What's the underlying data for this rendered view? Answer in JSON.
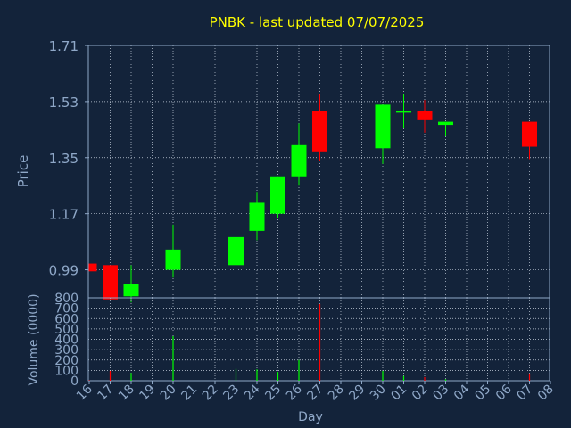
{
  "colors": {
    "background": "#13233a",
    "frame": "#8fa8c8",
    "grid": "#c9d3e0",
    "title": "#ffff00",
    "axis_text": "#8fa8c8",
    "up": "#00ff00",
    "down": "#ff0000"
  },
  "chart_data": [
    {
      "type": "candlestick",
      "title": "PNBK - last updated 07/07/2025",
      "xlabel": "",
      "ylabel": "Price",
      "ylim": [
        0.9,
        1.71
      ],
      "grid": true,
      "y_ticks": [
        "1.71",
        "1.53",
        "1.35",
        "1.17",
        "0.99"
      ],
      "x_ticks": [
        "16",
        "17",
        "18",
        "19",
        "20",
        "21",
        "22",
        "23",
        "24",
        "25",
        "26",
        "27",
        "28",
        "29",
        "30",
        "01",
        "02",
        "03",
        "04",
        "05",
        "06",
        "07",
        "08"
      ],
      "candles": [
        {
          "day": "16",
          "open": 1.01,
          "close": 0.985,
          "high": 1.01,
          "low": 0.985
        },
        {
          "day": "17",
          "open": 1.005,
          "close": 0.895,
          "high": 1.005,
          "low": 0.895
        },
        {
          "day": "18",
          "open": 0.905,
          "close": 0.945,
          "high": 1.005,
          "low": 0.885
        },
        {
          "day": "20",
          "open": 0.99,
          "close": 1.055,
          "high": 1.135,
          "low": 0.965
        },
        {
          "day": "23",
          "open": 1.005,
          "close": 1.095,
          "high": 1.095,
          "low": 0.935
        },
        {
          "day": "24",
          "open": 1.115,
          "close": 1.205,
          "high": 1.24,
          "low": 1.085
        },
        {
          "day": "25",
          "open": 1.17,
          "close": 1.29,
          "high": 1.29,
          "low": 1.155
        },
        {
          "day": "26",
          "open": 1.29,
          "close": 1.39,
          "high": 1.46,
          "low": 1.26
        },
        {
          "day": "27",
          "open": 1.5,
          "close": 1.37,
          "high": 1.555,
          "low": 1.34
        },
        {
          "day": "30",
          "open": 1.38,
          "close": 1.52,
          "high": 1.52,
          "low": 1.33
        },
        {
          "day": "01",
          "open": 1.495,
          "close": 1.5,
          "high": 1.555,
          "low": 1.445
        },
        {
          "day": "02",
          "open": 1.5,
          "close": 1.47,
          "high": 1.535,
          "low": 1.43
        },
        {
          "day": "03",
          "open": 1.455,
          "close": 1.465,
          "high": 1.465,
          "low": 1.42
        },
        {
          "day": "07",
          "open": 1.465,
          "close": 1.385,
          "high": 1.465,
          "low": 1.345
        }
      ]
    },
    {
      "type": "bar",
      "title": "",
      "xlabel": "Day",
      "ylabel": "Volume (0000)",
      "ylim": [
        0,
        800
      ],
      "grid": true,
      "y_ticks": [
        "800",
        "700",
        "600",
        "500",
        "400",
        "300",
        "200",
        "100",
        "0"
      ],
      "x_ticks": [
        "16",
        "17",
        "18",
        "19",
        "20",
        "21",
        "22",
        "23",
        "24",
        "25",
        "26",
        "27",
        "28",
        "29",
        "30",
        "01",
        "02",
        "03",
        "04",
        "05",
        "06",
        "07",
        "08"
      ],
      "bars": [
        {
          "day": "16",
          "value": 5,
          "direction": "down"
        },
        {
          "day": "17",
          "value": 95,
          "direction": "down"
        },
        {
          "day": "18",
          "value": 75,
          "direction": "up"
        },
        {
          "day": "20",
          "value": 430,
          "direction": "up"
        },
        {
          "day": "23",
          "value": 115,
          "direction": "up"
        },
        {
          "day": "24",
          "value": 110,
          "direction": "up"
        },
        {
          "day": "25",
          "value": 85,
          "direction": "up"
        },
        {
          "day": "26",
          "value": 200,
          "direction": "up"
        },
        {
          "day": "27",
          "value": 740,
          "direction": "down"
        },
        {
          "day": "30",
          "value": 95,
          "direction": "up"
        },
        {
          "day": "01",
          "value": 45,
          "direction": "up"
        },
        {
          "day": "02",
          "value": 35,
          "direction": "down"
        },
        {
          "day": "03",
          "value": 15,
          "direction": "up"
        },
        {
          "day": "07",
          "value": 70,
          "direction": "down"
        }
      ]
    }
  ]
}
